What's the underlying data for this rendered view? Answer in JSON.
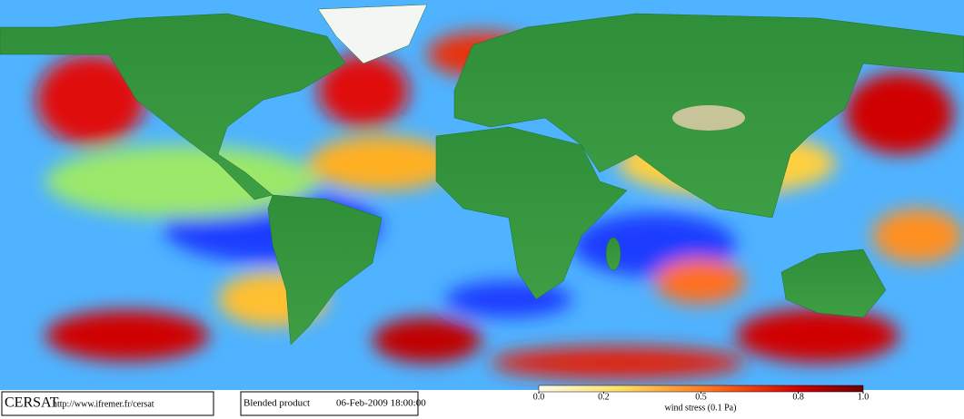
{
  "map": {
    "footer": {
      "logo": "CERSAT",
      "url": "http://www.ifremer.fr/cersat",
      "product": "Blended product",
      "date": "06-Feb-2009 18:00:00"
    },
    "colorbar": {
      "label": "wind stress (0.1 Pa)",
      "range": [
        0,
        1
      ],
      "ticks": [
        {
          "value": 0,
          "label": "0.0"
        },
        0.2,
        0.5,
        0.8,
        {
          "value": 1,
          "label": "1.0"
        }
      ]
    }
  }
}
